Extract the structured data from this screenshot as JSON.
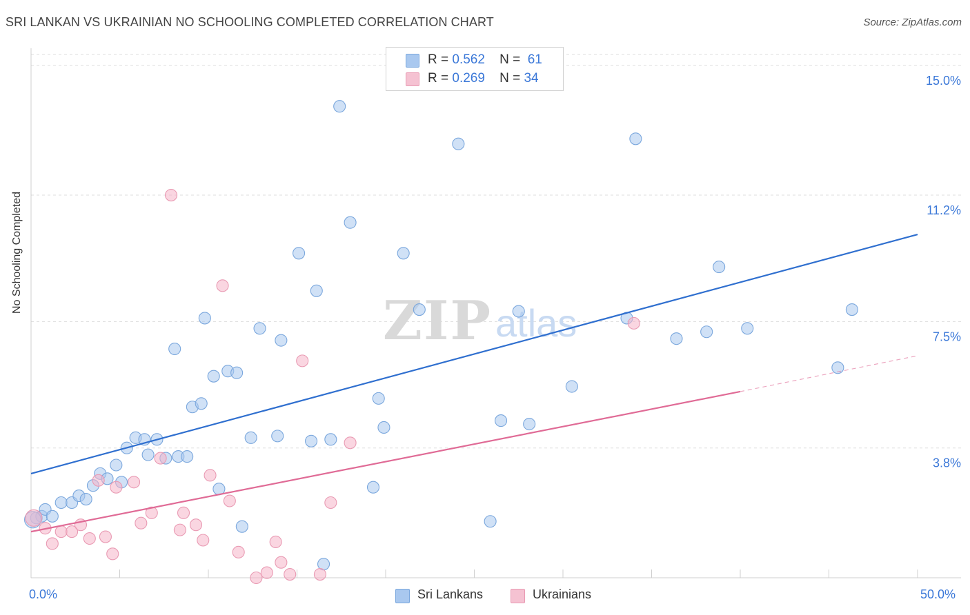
{
  "title": "SRI LANKAN VS UKRAINIAN NO SCHOOLING COMPLETED CORRELATION CHART",
  "source": "Source: ZipAtlas.com",
  "watermark": {
    "zip": "ZIP",
    "atlas": "atlas"
  },
  "legend": {
    "rows": [
      {
        "r_label": "R =",
        "r_value": "0.562",
        "n_label": "N =",
        "n_value": "61"
      },
      {
        "r_label": "R =",
        "r_value": "0.269",
        "n_label": "N =",
        "n_value": "34"
      }
    ]
  },
  "colors": {
    "blue_fill": "#a9c8ef",
    "blue_stroke": "#7aa7dd",
    "blue_line": "#2f6fcf",
    "pink_fill": "#f5b5c8",
    "pink_stroke": "#e99ab3",
    "pink_line": "#e06b96",
    "grid": "#dddddd",
    "tick_label": "#3b78d8"
  },
  "chart_data": {
    "type": "scatter",
    "title": "SRI LANKAN VS UKRAINIAN NO SCHOOLING COMPLETED CORRELATION CHART",
    "xlabel": "",
    "ylabel": "No Schooling Completed",
    "xlim": [
      0,
      50
    ],
    "ylim": [
      0,
      15.5
    ],
    "x_tick_labels": {
      "left": "0.0%",
      "right": "50.0%"
    },
    "y_ticks": [
      {
        "value": 3.8,
        "label": "3.8%"
      },
      {
        "value": 7.5,
        "label": "7.5%"
      },
      {
        "value": 11.2,
        "label": "11.2%"
      },
      {
        "value": 15.0,
        "label": "15.0%"
      }
    ],
    "series": [
      {
        "name": "Sri Lankans",
        "r": 0.562,
        "n": 61,
        "trend": {
          "x0": 0,
          "y0": 3.05,
          "x1": 50,
          "y1": 10.05,
          "dashed_to": null
        },
        "points": [
          [
            0.3,
            1.75
          ],
          [
            0.6,
            1.8
          ],
          [
            0.8,
            2.0
          ],
          [
            1.2,
            1.8
          ],
          [
            1.7,
            2.2
          ],
          [
            2.3,
            2.2
          ],
          [
            2.7,
            2.4
          ],
          [
            3.1,
            2.3
          ],
          [
            3.5,
            2.7
          ],
          [
            3.9,
            3.05
          ],
          [
            4.3,
            2.9
          ],
          [
            4.8,
            3.3
          ],
          [
            5.1,
            2.8
          ],
          [
            5.4,
            3.8
          ],
          [
            5.9,
            4.1
          ],
          [
            6.4,
            4.05
          ],
          [
            6.6,
            3.6
          ],
          [
            7.1,
            4.05
          ],
          [
            7.6,
            3.5
          ],
          [
            8.1,
            6.7
          ],
          [
            8.3,
            3.55
          ],
          [
            8.8,
            3.55
          ],
          [
            9.1,
            5.0
          ],
          [
            9.6,
            5.1
          ],
          [
            9.8,
            7.6
          ],
          [
            10.3,
            5.9
          ],
          [
            10.6,
            2.6
          ],
          [
            11.1,
            6.05
          ],
          [
            11.6,
            6.0
          ],
          [
            11.9,
            1.5
          ],
          [
            12.4,
            4.1
          ],
          [
            12.9,
            7.3
          ],
          [
            13.9,
            4.15
          ],
          [
            14.1,
            6.95
          ],
          [
            15.1,
            9.5
          ],
          [
            15.8,
            4.0
          ],
          [
            16.1,
            8.4
          ],
          [
            16.5,
            0.4
          ],
          [
            16.9,
            4.05
          ],
          [
            17.4,
            13.8
          ],
          [
            18.0,
            10.4
          ],
          [
            19.3,
            2.65
          ],
          [
            19.6,
            5.25
          ],
          [
            19.9,
            4.4
          ],
          [
            21.0,
            9.5
          ],
          [
            21.9,
            7.85
          ],
          [
            24.1,
            12.7
          ],
          [
            25.9,
            1.65
          ],
          [
            26.5,
            4.6
          ],
          [
            27.5,
            7.8
          ],
          [
            28.1,
            4.5
          ],
          [
            30.5,
            5.6
          ],
          [
            33.6,
            7.6
          ],
          [
            34.1,
            12.85
          ],
          [
            36.4,
            7.0
          ],
          [
            38.1,
            7.2
          ],
          [
            38.8,
            9.1
          ],
          [
            40.4,
            7.3
          ],
          [
            45.5,
            6.15
          ],
          [
            46.3,
            7.85
          ],
          [
            0.1,
            1.7
          ]
        ]
      },
      {
        "name": "Ukrainians",
        "r": 0.269,
        "n": 34,
        "trend": {
          "x0": 0,
          "y0": 1.35,
          "x1": 40,
          "y1": 5.45,
          "dashed_to": {
            "x": 50,
            "y": 6.5
          }
        },
        "points": [
          [
            0.15,
            1.75
          ],
          [
            0.8,
            1.45
          ],
          [
            1.2,
            1.0
          ],
          [
            1.7,
            1.35
          ],
          [
            2.3,
            1.35
          ],
          [
            2.8,
            1.55
          ],
          [
            3.3,
            1.15
          ],
          [
            3.8,
            2.85
          ],
          [
            4.2,
            1.2
          ],
          [
            4.6,
            0.7
          ],
          [
            4.8,
            2.65
          ],
          [
            5.8,
            2.8
          ],
          [
            6.2,
            1.6
          ],
          [
            6.8,
            1.9
          ],
          [
            7.3,
            3.5
          ],
          [
            7.9,
            11.2
          ],
          [
            8.4,
            1.4
          ],
          [
            8.6,
            1.9
          ],
          [
            9.3,
            1.55
          ],
          [
            9.7,
            1.1
          ],
          [
            10.1,
            3.0
          ],
          [
            10.8,
            8.55
          ],
          [
            11.2,
            2.25
          ],
          [
            11.7,
            0.75
          ],
          [
            12.7,
            0.0
          ],
          [
            13.3,
            0.15
          ],
          [
            13.8,
            1.05
          ],
          [
            14.1,
            0.45
          ],
          [
            14.6,
            0.1
          ],
          [
            15.3,
            6.35
          ],
          [
            16.3,
            0.1
          ],
          [
            16.9,
            2.2
          ],
          [
            18.0,
            3.95
          ],
          [
            34.0,
            7.45
          ]
        ]
      }
    ]
  },
  "bottom_legend": {
    "items": [
      "Sri Lankans",
      "Ukrainians"
    ]
  }
}
